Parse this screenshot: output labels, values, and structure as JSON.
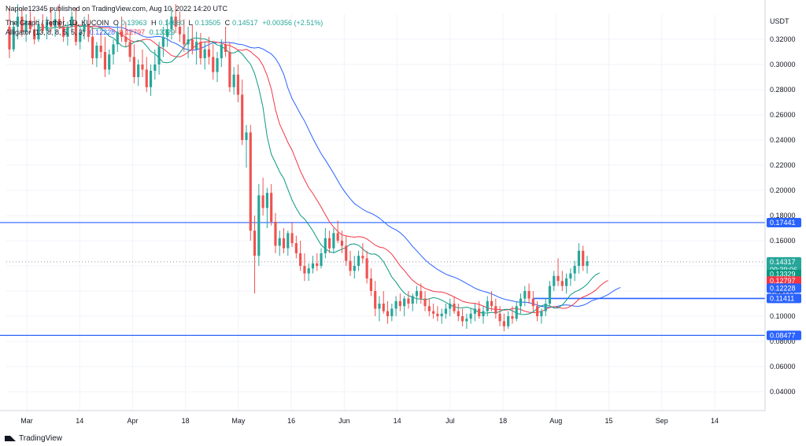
{
  "header": {
    "publisher": "Napole12345 published on TradingView.com, Aug 10, 2022 14:20 UTC",
    "symbol": "The Graph / Tether, 1D, KUCOIN",
    "ohlc": {
      "o_label": "O",
      "o": "0.13963",
      "h_label": "H",
      "h": "0.14660",
      "l_label": "L",
      "l": "0.13505",
      "c_label": "C",
      "c": "0.14517",
      "change": "+0.00356 (+2.51%)"
    },
    "indicator": {
      "name": "Alligator (13, 8, 8, 5, 5, 3)",
      "jaw": "0.12228",
      "teeth": "0.12797",
      "lips": "0.13329"
    }
  },
  "footer": {
    "brand": "TradingView"
  },
  "colors": {
    "up": "#26a69a",
    "down": "#ef5350",
    "jaw": "#2962ff",
    "teeth": "#f23645",
    "lips": "#089981",
    "level": "#2962ff",
    "grid": "#f0f3fa",
    "axis": "#131722"
  },
  "chart_data": {
    "type": "candlestick",
    "currency": "USDT",
    "ylim": [
      0.025,
      0.34
    ],
    "y_ticks": [
      "0.04000",
      "0.06000",
      "0.08000",
      "0.10000",
      "0.12000",
      "0.14000",
      "0.16000",
      "0.18000",
      "0.20000",
      "0.22000",
      "0.24000",
      "0.26000",
      "0.28000",
      "0.30000",
      "0.32000"
    ],
    "x_labels": [
      "Mar",
      "14",
      "Apr",
      "18",
      "May",
      "16",
      "Jun",
      "14",
      "Jul",
      "18",
      "Aug",
      "15",
      "Sep",
      "14"
    ],
    "horizontal_levels": [
      {
        "value": 0.17441,
        "label": "0.17441"
      },
      {
        "value": 0.08477,
        "label": "0.08477"
      },
      {
        "value": 0.11411,
        "label": "0.11411",
        "partial": true
      }
    ],
    "price_tags": [
      {
        "value": 0.14317,
        "label": "0.14317",
        "sub": "09:39:06",
        "color": "#26a69a"
      },
      {
        "value": 0.13329,
        "label": "0.13329",
        "color": "#089981"
      },
      {
        "value": 0.12797,
        "label": "0.12797",
        "color": "#f23645"
      },
      {
        "value": 0.12228,
        "label": "0.12228",
        "color": "#2962ff"
      },
      {
        "value": 0.11411,
        "label": "0.11411",
        "color": "#2962ff"
      },
      {
        "value": 0.17441,
        "label": "0.17441",
        "color": "#2962ff"
      },
      {
        "value": 0.08477,
        "label": "0.08477",
        "color": "#2962ff"
      }
    ],
    "last_price": 0.14317,
    "candles": [
      [
        0.33,
        0.345,
        0.305,
        0.312
      ],
      [
        0.312,
        0.335,
        0.31,
        0.33
      ],
      [
        0.33,
        0.348,
        0.32,
        0.338
      ],
      [
        0.338,
        0.345,
        0.322,
        0.326
      ],
      [
        0.326,
        0.34,
        0.318,
        0.335
      ],
      [
        0.335,
        0.342,
        0.325,
        0.328
      ],
      [
        0.328,
        0.338,
        0.316,
        0.32
      ],
      [
        0.32,
        0.336,
        0.318,
        0.332
      ],
      [
        0.332,
        0.34,
        0.325,
        0.327
      ],
      [
        0.327,
        0.338,
        0.32,
        0.334
      ],
      [
        0.334,
        0.345,
        0.326,
        0.33
      ],
      [
        0.33,
        0.342,
        0.322,
        0.336
      ],
      [
        0.336,
        0.348,
        0.328,
        0.33
      ],
      [
        0.33,
        0.338,
        0.318,
        0.322
      ],
      [
        0.322,
        0.334,
        0.315,
        0.33
      ],
      [
        0.33,
        0.342,
        0.325,
        0.338
      ],
      [
        0.334,
        0.345,
        0.315,
        0.318
      ],
      [
        0.318,
        0.33,
        0.312,
        0.326
      ],
      [
        0.326,
        0.338,
        0.32,
        0.332
      ],
      [
        0.332,
        0.34,
        0.318,
        0.322
      ],
      [
        0.322,
        0.33,
        0.3,
        0.305
      ],
      [
        0.305,
        0.318,
        0.298,
        0.315
      ],
      [
        0.315,
        0.326,
        0.305,
        0.31
      ],
      [
        0.31,
        0.322,
        0.29,
        0.296
      ],
      [
        0.296,
        0.312,
        0.292,
        0.308
      ],
      [
        0.308,
        0.32,
        0.3,
        0.316
      ],
      [
        0.316,
        0.332,
        0.31,
        0.326
      ],
      [
        0.326,
        0.338,
        0.318,
        0.322
      ],
      [
        0.322,
        0.334,
        0.314,
        0.318
      ],
      [
        0.318,
        0.328,
        0.302,
        0.306
      ],
      [
        0.306,
        0.316,
        0.285,
        0.29
      ],
      [
        0.29,
        0.304,
        0.283,
        0.3
      ],
      [
        0.3,
        0.312,
        0.29,
        0.296
      ],
      [
        0.296,
        0.306,
        0.278,
        0.282
      ],
      [
        0.282,
        0.3,
        0.275,
        0.295
      ],
      [
        0.295,
        0.312,
        0.288,
        0.3
      ],
      [
        0.3,
        0.318,
        0.292,
        0.314
      ],
      [
        0.314,
        0.33,
        0.306,
        0.322
      ],
      [
        0.322,
        0.336,
        0.314,
        0.328
      ],
      [
        0.328,
        0.345,
        0.32,
        0.338
      ],
      [
        0.338,
        0.348,
        0.325,
        0.33
      ],
      [
        0.33,
        0.342,
        0.318,
        0.324
      ],
      [
        0.324,
        0.336,
        0.31,
        0.316
      ],
      [
        0.316,
        0.33,
        0.305,
        0.32
      ],
      [
        0.32,
        0.332,
        0.308,
        0.312
      ],
      [
        0.312,
        0.326,
        0.3,
        0.318
      ],
      [
        0.318,
        0.325,
        0.3,
        0.305
      ],
      [
        0.305,
        0.318,
        0.296,
        0.312
      ],
      [
        0.312,
        0.322,
        0.3,
        0.306
      ],
      [
        0.306,
        0.316,
        0.288,
        0.294
      ],
      [
        0.294,
        0.31,
        0.286,
        0.305
      ],
      [
        0.305,
        0.32,
        0.298,
        0.316
      ],
      [
        0.316,
        0.33,
        0.306,
        0.31
      ],
      [
        0.31,
        0.318,
        0.278,
        0.282
      ],
      [
        0.282,
        0.298,
        0.276,
        0.292
      ],
      [
        0.292,
        0.3,
        0.27,
        0.276
      ],
      [
        0.276,
        0.288,
        0.236,
        0.24
      ],
      [
        0.24,
        0.252,
        0.218,
        0.246
      ],
      [
        0.246,
        0.252,
        0.16,
        0.168
      ],
      [
        0.168,
        0.18,
        0.118,
        0.148
      ],
      [
        0.148,
        0.205,
        0.14,
        0.196
      ],
      [
        0.196,
        0.21,
        0.18,
        0.186
      ],
      [
        0.186,
        0.202,
        0.17,
        0.198
      ],
      [
        0.198,
        0.205,
        0.172,
        0.175
      ],
      [
        0.175,
        0.182,
        0.15,
        0.156
      ],
      [
        0.156,
        0.168,
        0.148,
        0.162
      ],
      [
        0.162,
        0.17,
        0.15,
        0.154
      ],
      [
        0.154,
        0.168,
        0.148,
        0.166
      ],
      [
        0.166,
        0.175,
        0.155,
        0.158
      ],
      [
        0.158,
        0.164,
        0.146,
        0.15
      ],
      [
        0.15,
        0.16,
        0.136,
        0.14
      ],
      [
        0.14,
        0.15,
        0.128,
        0.134
      ],
      [
        0.134,
        0.142,
        0.128,
        0.138
      ],
      [
        0.138,
        0.148,
        0.134,
        0.142
      ],
      [
        0.142,
        0.15,
        0.136,
        0.14
      ],
      [
        0.14,
        0.154,
        0.138,
        0.15
      ],
      [
        0.15,
        0.17,
        0.146,
        0.162
      ],
      [
        0.162,
        0.168,
        0.15,
        0.154
      ],
      [
        0.154,
        0.17,
        0.15,
        0.166
      ],
      [
        0.166,
        0.176,
        0.158,
        0.16
      ],
      [
        0.16,
        0.168,
        0.15,
        0.156
      ],
      [
        0.156,
        0.164,
        0.14,
        0.144
      ],
      [
        0.144,
        0.152,
        0.132,
        0.136
      ],
      [
        0.136,
        0.148,
        0.13,
        0.14
      ],
      [
        0.14,
        0.152,
        0.136,
        0.148
      ],
      [
        0.148,
        0.158,
        0.142,
        0.146
      ],
      [
        0.146,
        0.152,
        0.126,
        0.13
      ],
      [
        0.13,
        0.138,
        0.116,
        0.12
      ],
      [
        0.12,
        0.128,
        0.1,
        0.106
      ],
      [
        0.106,
        0.116,
        0.096,
        0.11
      ],
      [
        0.11,
        0.12,
        0.102,
        0.104
      ],
      [
        0.104,
        0.112,
        0.094,
        0.1
      ],
      [
        0.1,
        0.11,
        0.096,
        0.106
      ],
      [
        0.106,
        0.116,
        0.1,
        0.112
      ],
      [
        0.112,
        0.118,
        0.104,
        0.108
      ],
      [
        0.108,
        0.116,
        0.1,
        0.114
      ],
      [
        0.114,
        0.12,
        0.106,
        0.11
      ],
      [
        0.11,
        0.118,
        0.104,
        0.116
      ],
      [
        0.116,
        0.124,
        0.11,
        0.12
      ],
      [
        0.12,
        0.126,
        0.11,
        0.114
      ],
      [
        0.114,
        0.12,
        0.104,
        0.108
      ],
      [
        0.108,
        0.114,
        0.1,
        0.104
      ],
      [
        0.104,
        0.11,
        0.098,
        0.102
      ],
      [
        0.102,
        0.108,
        0.096,
        0.1
      ],
      [
        0.1,
        0.106,
        0.094,
        0.102
      ],
      [
        0.102,
        0.11,
        0.098,
        0.106
      ],
      [
        0.106,
        0.114,
        0.1,
        0.11
      ],
      [
        0.11,
        0.116,
        0.102,
        0.104
      ],
      [
        0.104,
        0.11,
        0.096,
        0.1
      ],
      [
        0.1,
        0.106,
        0.092,
        0.096
      ],
      [
        0.096,
        0.102,
        0.09,
        0.098
      ],
      [
        0.098,
        0.106,
        0.094,
        0.102
      ],
      [
        0.102,
        0.11,
        0.096,
        0.106
      ],
      [
        0.106,
        0.112,
        0.098,
        0.1
      ],
      [
        0.1,
        0.108,
        0.094,
        0.104
      ],
      [
        0.104,
        0.116,
        0.1,
        0.112
      ],
      [
        0.112,
        0.12,
        0.104,
        0.108
      ],
      [
        0.108,
        0.114,
        0.098,
        0.102
      ],
      [
        0.102,
        0.108,
        0.092,
        0.096
      ],
      [
        0.096,
        0.102,
        0.088,
        0.092
      ],
      [
        0.092,
        0.104,
        0.09,
        0.1
      ],
      [
        0.1,
        0.108,
        0.094,
        0.098
      ],
      [
        0.098,
        0.112,
        0.096,
        0.108
      ],
      [
        0.108,
        0.118,
        0.102,
        0.114
      ],
      [
        0.114,
        0.124,
        0.108,
        0.12
      ],
      [
        0.12,
        0.126,
        0.11,
        0.114
      ],
      [
        0.114,
        0.12,
        0.104,
        0.108
      ],
      [
        0.108,
        0.112,
        0.096,
        0.1
      ],
      [
        0.1,
        0.106,
        0.094,
        0.104
      ],
      [
        0.104,
        0.114,
        0.1,
        0.11
      ],
      [
        0.11,
        0.128,
        0.108,
        0.124
      ],
      [
        0.124,
        0.136,
        0.12,
        0.132
      ],
      [
        0.132,
        0.146,
        0.124,
        0.128
      ],
      [
        0.128,
        0.136,
        0.12,
        0.124
      ],
      [
        0.124,
        0.134,
        0.118,
        0.13
      ],
      [
        0.13,
        0.138,
        0.124,
        0.134
      ],
      [
        0.134,
        0.144,
        0.128,
        0.14
      ],
      [
        0.14,
        0.158,
        0.134,
        0.152
      ],
      [
        0.152,
        0.156,
        0.136,
        0.14
      ],
      [
        0.14,
        0.148,
        0.134,
        0.1436
      ]
    ],
    "series": [
      {
        "name": "Jaw",
        "color": "#2962ff"
      },
      {
        "name": "Teeth",
        "color": "#f23645"
      },
      {
        "name": "Lips",
        "color": "#089981"
      }
    ]
  }
}
